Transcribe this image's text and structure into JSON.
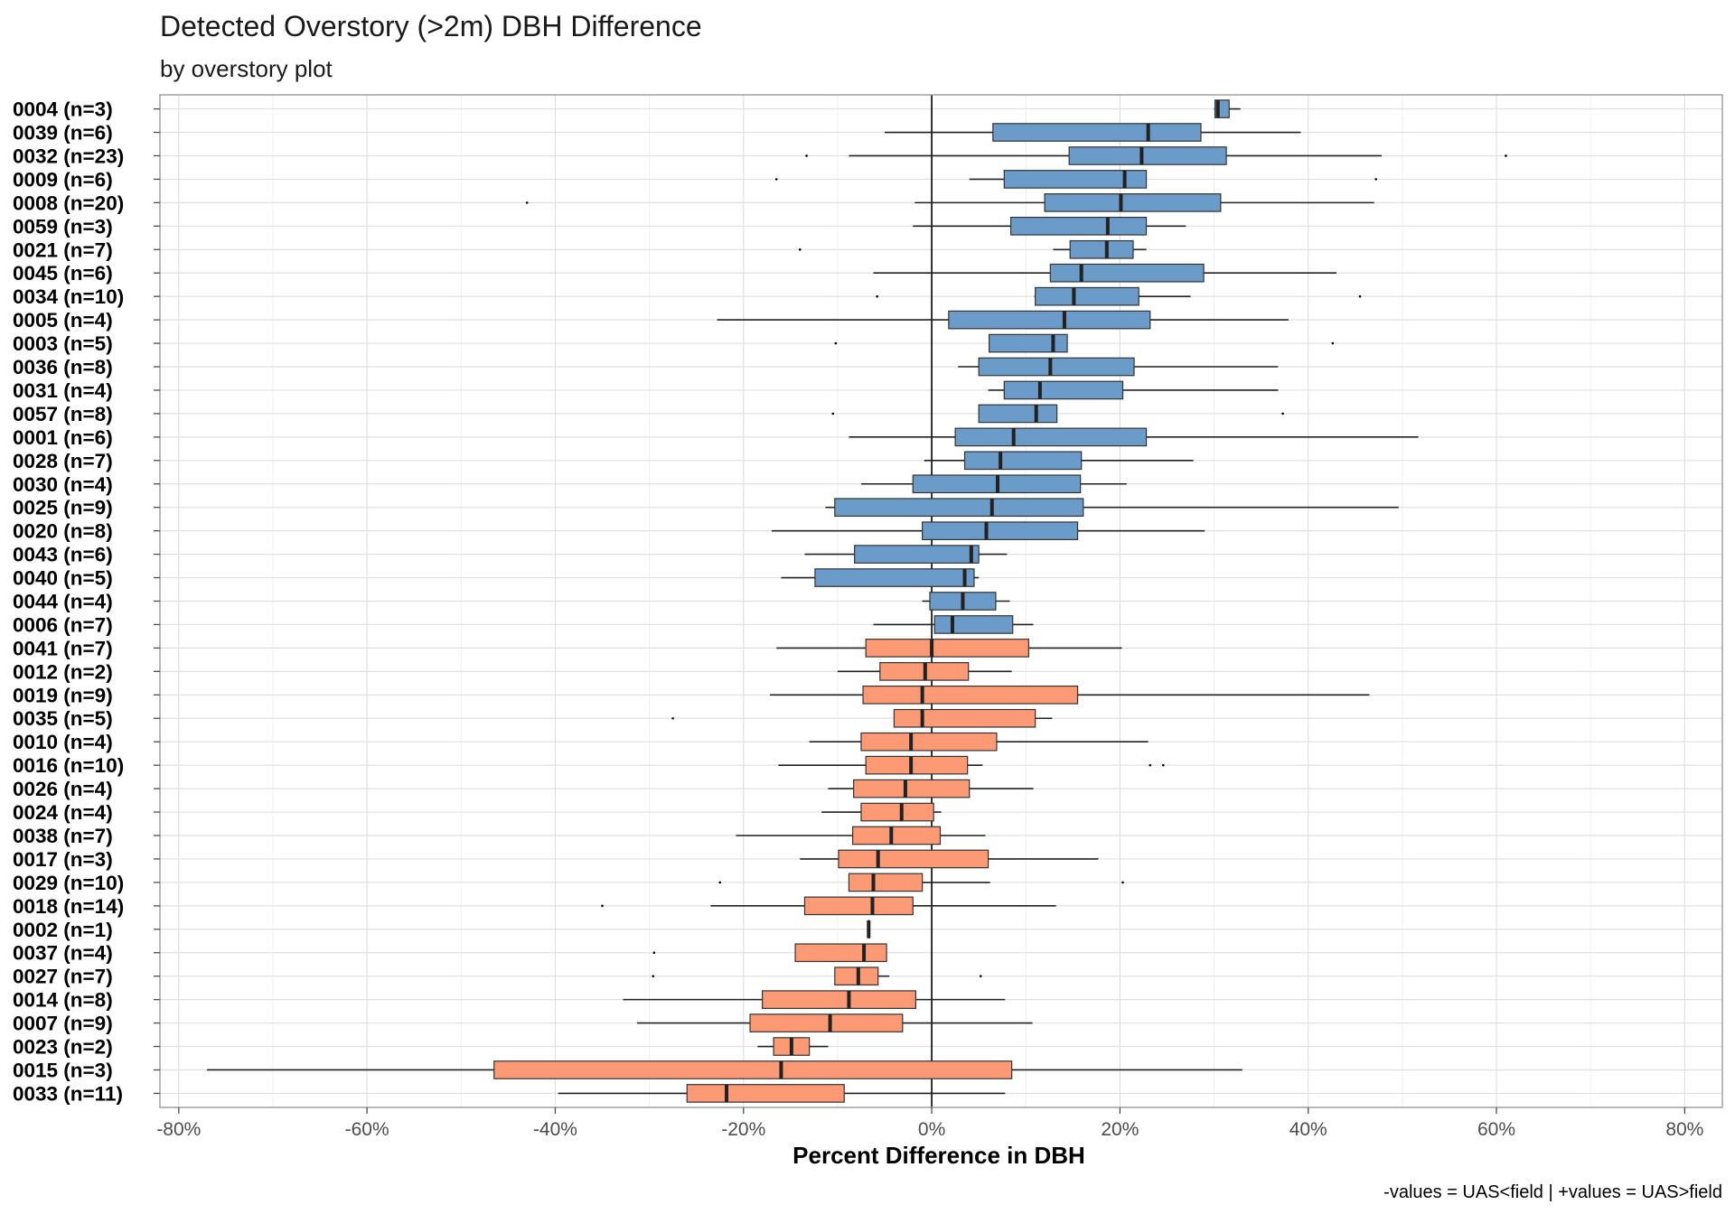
{
  "chart_data": {
    "type": "boxplot",
    "title": "Detected Overstory (>2m) DBH Difference",
    "subtitle": "by overstory plot",
    "xlabel": "Percent Difference in DBH",
    "ylabel": "",
    "caption": "-values = UAS<field | +values = UAS>field",
    "xlim": [
      -0.82,
      0.84
    ],
    "x_ticks": [
      -0.8,
      -0.6,
      -0.4,
      -0.2,
      0,
      0.2,
      0.4,
      0.6,
      0.8
    ],
    "x_tick_labels": [
      "-80%",
      "-60%",
      "-40%",
      "-20%",
      "0%",
      "20%",
      "40%",
      "60%",
      "80%"
    ],
    "grid": true,
    "legend": "none",
    "colors": {
      "positive_median": "#6b9bc8",
      "negative_median": "#fc9a76",
      "outline": "#333333",
      "zero_line": "#000000",
      "grid": "#e0e0e0",
      "panel_border": "#999999"
    },
    "categories": [
      "0004 (n=3)",
      "0039 (n=6)",
      "0032 (n=23)",
      "0009 (n=6)",
      "0008 (n=20)",
      "0059 (n=3)",
      "0021 (n=7)",
      "0045 (n=6)",
      "0034 (n=10)",
      "0005 (n=4)",
      "0003 (n=5)",
      "0036 (n=8)",
      "0031 (n=4)",
      "0057 (n=8)",
      "0001 (n=6)",
      "0028 (n=7)",
      "0030 (n=4)",
      "0025 (n=9)",
      "0020 (n=8)",
      "0043 (n=6)",
      "0040 (n=5)",
      "0044 (n=4)",
      "0006 (n=7)",
      "0041 (n=7)",
      "0012 (n=2)",
      "0019 (n=9)",
      "0035 (n=5)",
      "0010 (n=4)",
      "0016 (n=10)",
      "0026 (n=4)",
      "0024 (n=4)",
      "0038 (n=7)",
      "0017 (n=3)",
      "0029 (n=10)",
      "0018 (n=14)",
      "0002 (n=1)",
      "0037 (n=4)",
      "0027 (n=7)",
      "0014 (n=8)",
      "0007 (n=9)",
      "0023 (n=2)",
      "0015 (n=3)",
      "0033 (n=11)"
    ],
    "boxes": [
      {
        "lw": 0.3,
        "q1": 0.301,
        "med": 0.304,
        "q3": 0.316,
        "uw": 0.328,
        "out": []
      },
      {
        "lw": -0.05,
        "q1": 0.065,
        "med": 0.23,
        "q3": 0.286,
        "uw": 0.392,
        "out": []
      },
      {
        "lw": -0.088,
        "q1": 0.146,
        "med": 0.223,
        "q3": 0.313,
        "uw": 0.478,
        "out": [
          -0.133,
          0.61
        ]
      },
      {
        "lw": 0.04,
        "q1": 0.077,
        "med": 0.205,
        "q3": 0.228,
        "uw": 0.228,
        "out": [
          -0.165,
          0.472
        ]
      },
      {
        "lw": -0.018,
        "q1": 0.12,
        "med": 0.201,
        "q3": 0.307,
        "uw": 0.47,
        "out": [
          -0.43
        ]
      },
      {
        "lw": -0.02,
        "q1": 0.084,
        "med": 0.187,
        "q3": 0.228,
        "uw": 0.27,
        "out": []
      },
      {
        "lw": 0.129,
        "q1": 0.147,
        "med": 0.186,
        "q3": 0.214,
        "uw": 0.228,
        "out": [
          -0.14
        ]
      },
      {
        "lw": -0.062,
        "q1": 0.126,
        "med": 0.159,
        "q3": 0.289,
        "uw": 0.43,
        "out": []
      },
      {
        "lw": 0.109,
        "q1": 0.11,
        "med": 0.151,
        "q3": 0.22,
        "uw": 0.275,
        "out": [
          -0.058,
          0.455
        ]
      },
      {
        "lw": -0.228,
        "q1": 0.018,
        "med": 0.141,
        "q3": 0.232,
        "uw": 0.379,
        "out": []
      },
      {
        "lw": 0.061,
        "q1": 0.061,
        "med": 0.129,
        "q3": 0.144,
        "uw": 0.144,
        "out": [
          -0.102,
          0.426
        ]
      },
      {
        "lw": 0.028,
        "q1": 0.05,
        "med": 0.126,
        "q3": 0.215,
        "uw": 0.368,
        "out": []
      },
      {
        "lw": 0.06,
        "q1": 0.077,
        "med": 0.115,
        "q3": 0.203,
        "uw": 0.368,
        "out": []
      },
      {
        "lw": 0.05,
        "q1": 0.05,
        "med": 0.111,
        "q3": 0.133,
        "uw": 0.133,
        "out": [
          -0.105,
          0.373
        ]
      },
      {
        "lw": -0.088,
        "q1": 0.025,
        "med": 0.087,
        "q3": 0.228,
        "uw": 0.517,
        "out": []
      },
      {
        "lw": -0.008,
        "q1": 0.035,
        "med": 0.073,
        "q3": 0.159,
        "uw": 0.278,
        "out": []
      },
      {
        "lw": -0.075,
        "q1": -0.02,
        "med": 0.07,
        "q3": 0.158,
        "uw": 0.207,
        "out": []
      },
      {
        "lw": -0.113,
        "q1": -0.103,
        "med": 0.064,
        "q3": 0.161,
        "uw": 0.496,
        "out": []
      },
      {
        "lw": -0.17,
        "q1": -0.01,
        "med": 0.058,
        "q3": 0.155,
        "uw": 0.29,
        "out": []
      },
      {
        "lw": -0.135,
        "q1": -0.082,
        "med": 0.042,
        "q3": 0.05,
        "uw": 0.08,
        "out": []
      },
      {
        "lw": -0.16,
        "q1": -0.124,
        "med": 0.035,
        "q3": 0.045,
        "uw": 0.05,
        "out": []
      },
      {
        "lw": -0.01,
        "q1": -0.002,
        "med": 0.033,
        "q3": 0.068,
        "uw": 0.083,
        "out": []
      },
      {
        "lw": -0.062,
        "q1": 0.003,
        "med": 0.022,
        "q3": 0.086,
        "uw": 0.108,
        "out": []
      },
      {
        "lw": -0.165,
        "q1": -0.07,
        "med": 0.0,
        "q3": 0.103,
        "uw": 0.202,
        "out": []
      },
      {
        "lw": -0.1,
        "q1": -0.055,
        "med": -0.007,
        "q3": 0.039,
        "uw": 0.085,
        "out": []
      },
      {
        "lw": -0.172,
        "q1": -0.073,
        "med": -0.01,
        "q3": 0.155,
        "uw": 0.465,
        "out": []
      },
      {
        "lw": -0.04,
        "q1": -0.04,
        "med": -0.01,
        "q3": 0.11,
        "uw": 0.128,
        "out": [
          -0.275
        ]
      },
      {
        "lw": -0.13,
        "q1": -0.075,
        "med": -0.022,
        "q3": 0.069,
        "uw": 0.23,
        "out": []
      },
      {
        "lw": -0.163,
        "q1": -0.07,
        "med": -0.022,
        "q3": 0.038,
        "uw": 0.054,
        "out": [
          0.232,
          0.246
        ]
      },
      {
        "lw": -0.11,
        "q1": -0.083,
        "med": -0.028,
        "q3": 0.04,
        "uw": 0.108,
        "out": []
      },
      {
        "lw": -0.117,
        "q1": -0.075,
        "med": -0.032,
        "q3": 0.002,
        "uw": 0.01,
        "out": []
      },
      {
        "lw": -0.208,
        "q1": -0.084,
        "med": -0.043,
        "q3": 0.009,
        "uw": 0.057,
        "out": []
      },
      {
        "lw": -0.14,
        "q1": -0.099,
        "med": -0.057,
        "q3": 0.06,
        "uw": 0.177,
        "out": []
      },
      {
        "lw": -0.088,
        "q1": -0.088,
        "med": -0.062,
        "q3": -0.01,
        "uw": 0.062,
        "out": [
          -0.225,
          0.203
        ]
      },
      {
        "lw": -0.235,
        "q1": -0.135,
        "med": -0.063,
        "q3": -0.02,
        "uw": 0.132,
        "out": [
          -0.35
        ]
      },
      {
        "lw": -0.067,
        "q1": -0.067,
        "med": -0.067,
        "q3": -0.067,
        "uw": -0.067,
        "out": []
      },
      {
        "lw": -0.145,
        "q1": -0.145,
        "med": -0.072,
        "q3": -0.048,
        "uw": -0.048,
        "out": [
          -0.295
        ]
      },
      {
        "lw": -0.103,
        "q1": -0.103,
        "med": -0.078,
        "q3": -0.057,
        "uw": -0.045,
        "out": [
          -0.296,
          0.052
        ]
      },
      {
        "lw": -0.328,
        "q1": -0.18,
        "med": -0.088,
        "q3": -0.017,
        "uw": 0.078,
        "out": []
      },
      {
        "lw": -0.313,
        "q1": -0.193,
        "med": -0.108,
        "q3": -0.031,
        "uw": 0.107,
        "out": []
      },
      {
        "lw": -0.185,
        "q1": -0.168,
        "med": -0.149,
        "q3": -0.13,
        "uw": -0.11,
        "out": []
      },
      {
        "lw": -0.77,
        "q1": -0.465,
        "med": -0.16,
        "q3": 0.085,
        "uw": 0.33,
        "out": []
      },
      {
        "lw": -0.397,
        "q1": -0.26,
        "med": -0.218,
        "q3": -0.093,
        "uw": 0.078,
        "out": []
      }
    ]
  }
}
